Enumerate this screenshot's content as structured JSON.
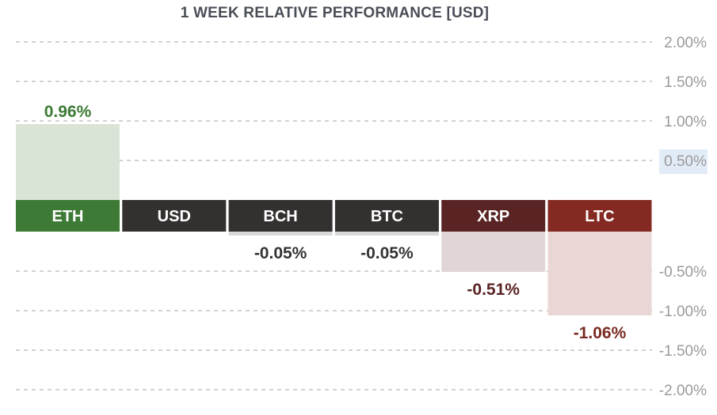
{
  "title": "1 WEEK RELATIVE PERFORMANCE  [USD]",
  "chart_data": {
    "type": "bar",
    "title": "1 WEEK RELATIVE PERFORMANCE  [USD]",
    "categories": [
      "ETH",
      "USD",
      "BCH",
      "BTC",
      "XRP",
      "LTC"
    ],
    "values": [
      0.96,
      0,
      -0.05,
      -0.05,
      -0.51,
      -1.06
    ],
    "value_labels": [
      "0.96%",
      "",
      "-0.05%",
      "-0.05%",
      "-0.51%",
      "-1.06%"
    ],
    "unit": "%",
    "ylim": [
      -2.0,
      2.0
    ],
    "yticks": [
      2.0,
      1.5,
      1.0,
      0.5,
      -0.5,
      -1.0,
      -1.5,
      -2.0
    ],
    "ytick_labels": [
      "2.00%",
      "1.50%",
      "1.00%",
      "0.50%",
      "-0.50%",
      "-1.00%",
      "-1.50%",
      "-2.00%"
    ],
    "highlighted_tick": "0.50%",
    "grid": true,
    "colors": {
      "category_fill": [
        "#3d7a35",
        "#33302f",
        "#33302f",
        "#33302f",
        "#5a2424",
        "#842a22"
      ],
      "bar_fill": [
        "#dae4d6",
        null,
        "#d8d8d8",
        "#d8d8d8",
        "#e1d6d6",
        "#ead6d4"
      ],
      "value_text": [
        "#3d7a35",
        null,
        "#333333",
        "#333333",
        "#5a2424",
        "#7a2a22"
      ],
      "title": "#4a4f57",
      "tick_text": "#9a9a9a",
      "gridline": "#c4c4c4",
      "tick_highlight_bg": "#e2ecf7"
    }
  }
}
